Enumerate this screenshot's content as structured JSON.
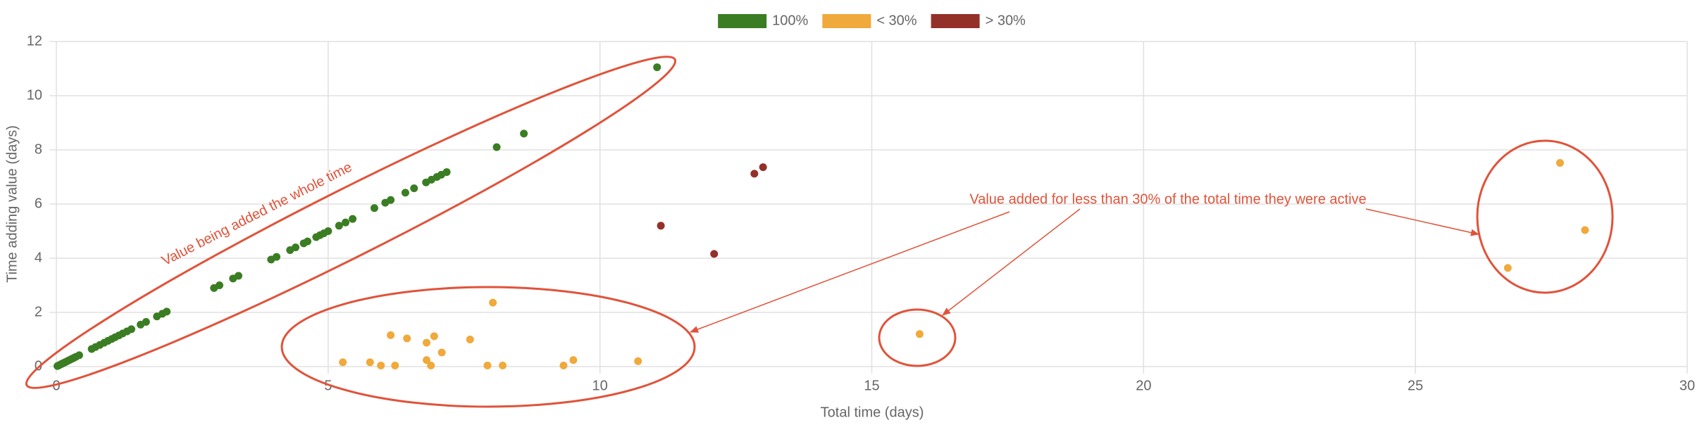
{
  "chart_data": {
    "type": "scatter",
    "x_label": "Total time (days)",
    "y_label": "Time adding value (days)",
    "xlim": [
      0,
      30
    ],
    "ylim": [
      0,
      12
    ],
    "xticks": [
      0,
      5,
      10,
      15,
      20,
      25,
      30
    ],
    "yticks": [
      0,
      2,
      4,
      6,
      8,
      10,
      12
    ],
    "grid": true,
    "legend": "top",
    "series": [
      {
        "name": "100%",
        "color": "#3b7d23",
        "x": [
          0.02,
          0.05,
          0.08,
          0.1,
          0.13,
          0.16,
          0.2,
          0.24,
          0.28,
          0.32,
          0.36,
          0.42,
          0.65,
          0.72,
          0.8,
          0.88,
          0.95,
          1.02,
          1.08,
          1.15,
          1.22,
          1.3,
          1.38,
          1.55,
          1.65,
          1.85,
          1.95,
          2.03,
          2.9,
          3.0,
          3.25,
          3.35,
          3.95,
          4.05,
          4.3,
          4.4,
          4.55,
          4.62,
          4.78,
          4.85,
          4.92,
          5.0,
          5.2,
          5.32,
          5.45,
          5.85,
          6.05,
          6.15,
          6.42,
          6.58,
          6.8,
          6.9,
          7.0,
          7.08,
          7.18,
          8.1,
          8.6,
          11.05
        ],
        "values": [
          0.02,
          0.05,
          0.08,
          0.1,
          0.13,
          0.16,
          0.2,
          0.24,
          0.28,
          0.32,
          0.36,
          0.42,
          0.65,
          0.72,
          0.8,
          0.88,
          0.95,
          1.02,
          1.08,
          1.15,
          1.22,
          1.3,
          1.38,
          1.55,
          1.65,
          1.85,
          1.95,
          2.03,
          2.9,
          3.0,
          3.25,
          3.35,
          3.95,
          4.05,
          4.3,
          4.4,
          4.55,
          4.62,
          4.78,
          4.85,
          4.92,
          5.0,
          5.2,
          5.32,
          5.45,
          5.85,
          6.05,
          6.15,
          6.42,
          6.58,
          6.8,
          6.9,
          7.0,
          7.08,
          7.18,
          8.1,
          8.6,
          11.05
        ]
      },
      {
        "name": "< 30%",
        "color": "#f0a93b",
        "x": [
          5.27,
          5.77,
          5.97,
          6.15,
          6.23,
          6.45,
          6.81,
          6.81,
          6.89,
          6.95,
          7.09,
          7.61,
          7.93,
          8.03,
          8.21,
          9.33,
          9.51,
          10.7,
          15.88,
          26.7,
          27.66,
          28.12
        ],
        "values": [
          0.16,
          0.16,
          0.04,
          1.16,
          0.04,
          1.04,
          0.88,
          0.24,
          0.04,
          1.12,
          0.52,
          1.0,
          0.04,
          2.36,
          0.04,
          0.04,
          0.24,
          0.2,
          1.2,
          3.64,
          7.52,
          5.04
        ]
      },
      {
        "name": "> 30%",
        "color": "#93302a",
        "x": [
          11.12,
          12.1,
          12.84,
          13.0
        ],
        "values": [
          5.2,
          4.16,
          7.12,
          7.36
        ]
      }
    ],
    "annotations": [
      "Value being added the whole time",
      "Value added for less than 30% of the total time they were active"
    ]
  }
}
